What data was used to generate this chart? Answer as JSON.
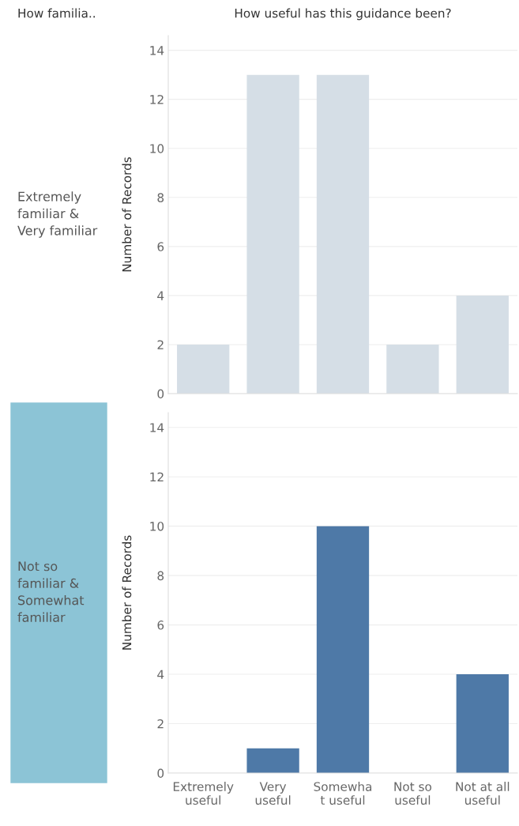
{
  "chart_data": [
    {
      "type": "bar",
      "title": "How useful has this guidance been?",
      "annotations": [
        "How familia.."
      ],
      "subtitle": "Extremely\nfamiliar &\nVery familiar",
      "ylabel": "Number of Records",
      "categories": [
        null,
        null,
        null,
        null,
        null
      ],
      "values": [
        2,
        13,
        13,
        2,
        4
      ],
      "color": "#d5dee6",
      "ylim": [
        0,
        14.6
      ],
      "yticks": [
        0,
        2,
        4,
        6,
        8,
        10,
        12,
        14
      ],
      "grid": "y"
    },
    {
      "type": "bar",
      "subtitle": "Not so\nfamiliar &\nSomewhat\nfamiliar",
      "ylabel": "Number of Records",
      "categories": [
        "Extremely\nuseful",
        "Very\nuseful",
        "Somewha\nt useful",
        "Not so\nuseful",
        "Not at all\nuseful"
      ],
      "values": [
        null,
        1,
        10,
        null,
        4
      ],
      "color": "#4e79a7",
      "ylim": [
        0,
        14.6
      ],
      "yticks": [
        0,
        2,
        4,
        6,
        8,
        10,
        12,
        14
      ],
      "grid": "y"
    }
  ]
}
